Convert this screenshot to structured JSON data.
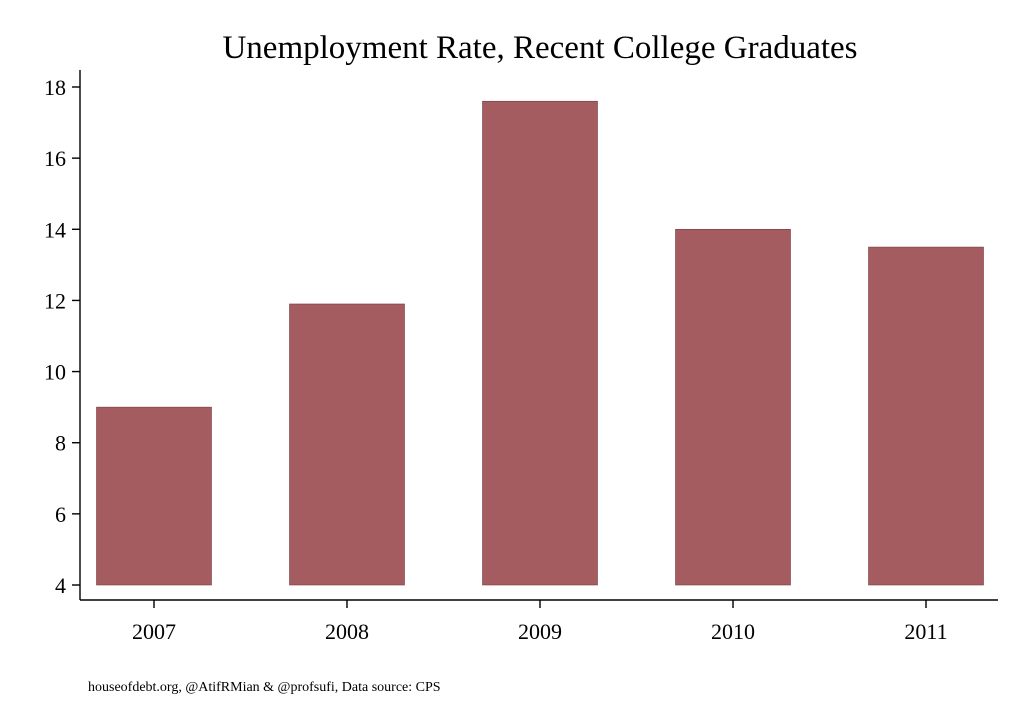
{
  "chart_data": {
    "type": "bar",
    "title": "Unemployment Rate, Recent College Graduates",
    "xlabel": "",
    "ylabel": "",
    "categories": [
      "2007",
      "2008",
      "2009",
      "2010",
      "2011"
    ],
    "values": [
      9.0,
      11.9,
      17.6,
      14.0,
      13.5
    ],
    "ylim": [
      4,
      18
    ],
    "yticks": [
      4,
      6,
      8,
      10,
      12,
      14,
      16,
      18
    ],
    "bar_base": 4,
    "bar_color": "#a45c60",
    "grid": false,
    "legend": "none"
  },
  "footnote": "houseofdebt.org, @AtifRMian & @profsufi, Data source: CPS"
}
